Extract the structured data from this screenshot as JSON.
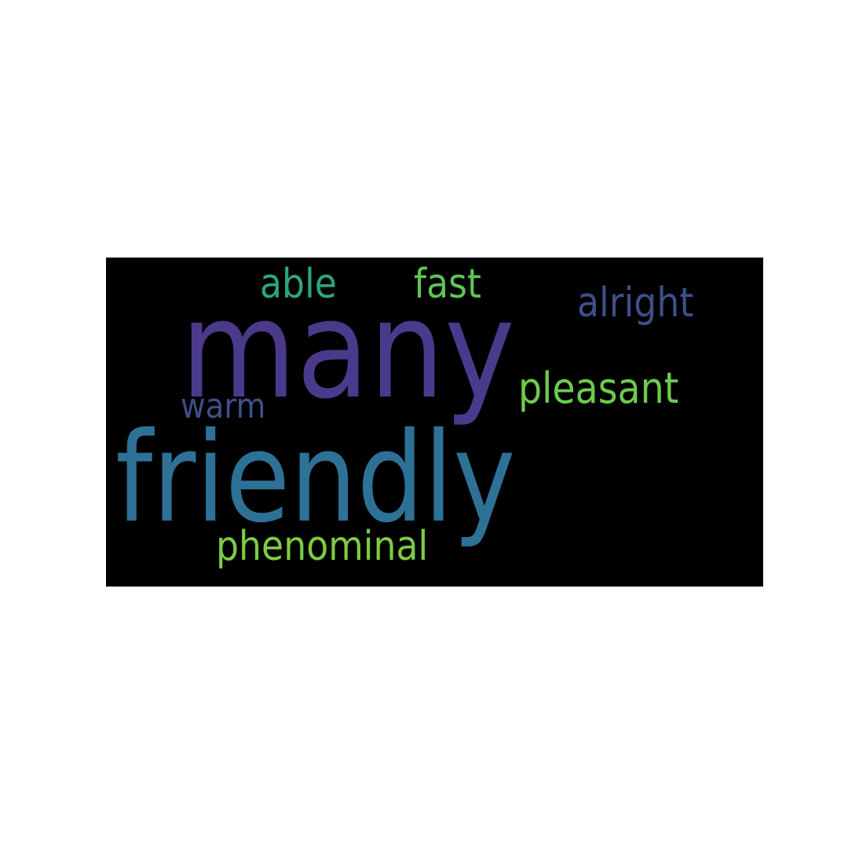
{
  "word_cloud": {
    "background_color": "#000000",
    "page_color": "#ffffff",
    "words": [
      {
        "text": "many",
        "color": "#4B3A8B"
      },
      {
        "text": "friendly",
        "color": "#2D7196"
      },
      {
        "text": "able",
        "color": "#2EA67C"
      },
      {
        "text": "fast",
        "color": "#5FC456"
      },
      {
        "text": "alright",
        "color": "#3E4F8A"
      },
      {
        "text": "pleasant",
        "color": "#6CCB4D"
      },
      {
        "text": "warm",
        "color": "#3E4F8A"
      },
      {
        "text": "phenominal",
        "color": "#7DCC44"
      }
    ]
  }
}
